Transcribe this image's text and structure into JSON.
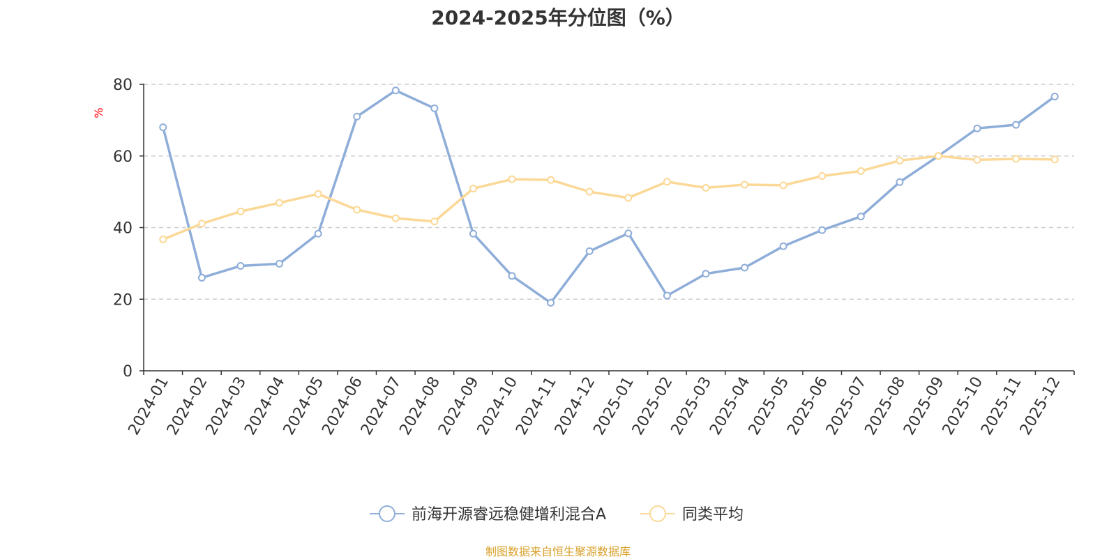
{
  "chart_data": {
    "type": "line",
    "title": "2024-2025年分位图（%）",
    "ylabel": "%",
    "xlabel": "",
    "ylim": [
      0,
      80
    ],
    "yticks": [
      0,
      20,
      40,
      60,
      80
    ],
    "grid": true,
    "legend_position": "bottom-center",
    "categories": [
      "2024-01",
      "2024-02",
      "2024-03",
      "2024-04",
      "2024-05",
      "2024-06",
      "2024-07",
      "2024-08",
      "2024-09",
      "2024-10",
      "2024-11",
      "2024-12",
      "2025-01",
      "2025-02",
      "2025-03",
      "2025-04",
      "2025-05",
      "2025-06",
      "2025-07",
      "2025-08",
      "2025-09",
      "2025-10",
      "2025-11",
      "2025-12"
    ],
    "series": [
      {
        "name": "前海开源睿远稳健增利混合A",
        "color": "#8eadd8",
        "values": [
          68.0,
          26.0,
          29.3,
          29.9,
          38.3,
          71.0,
          78.3,
          73.3,
          38.3,
          26.5,
          19.0,
          33.4,
          38.4,
          21.0,
          27.1,
          28.8,
          34.8,
          39.3,
          43.1,
          52.7,
          60.0,
          67.7,
          68.7,
          76.6
        ]
      },
      {
        "name": "同类平均",
        "color": "#fbd896",
        "values": [
          36.7,
          41.1,
          44.5,
          46.9,
          49.4,
          45.0,
          42.6,
          41.7,
          50.9,
          53.5,
          53.3,
          50.0,
          48.3,
          52.8,
          51.1,
          52.0,
          51.8,
          54.4,
          55.8,
          58.7,
          60.0,
          58.9,
          59.2,
          59.0
        ]
      }
    ]
  },
  "source_note": "制图数据来自恒生聚源数据库"
}
